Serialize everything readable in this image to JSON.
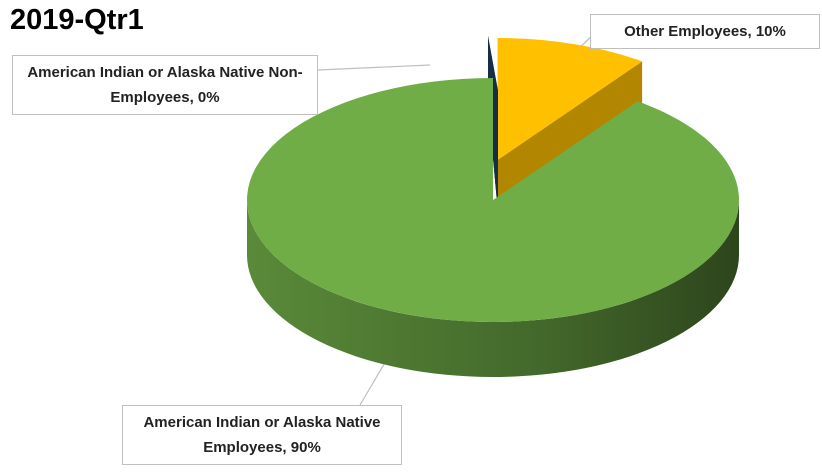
{
  "chart_data": {
    "type": "pie",
    "title": "2019-Qtr1",
    "labels": [
      "Other Employees, 10%",
      "American Indian or Alaska Native Employees, 90%",
      "American Indian or Alaska Native Non-Employees, 0%"
    ],
    "values": [
      10,
      90,
      0
    ],
    "colors": [
      "#ffc000",
      "#70ad47",
      "#1f3f66"
    ],
    "exploded": [
      true,
      false,
      true
    ]
  }
}
